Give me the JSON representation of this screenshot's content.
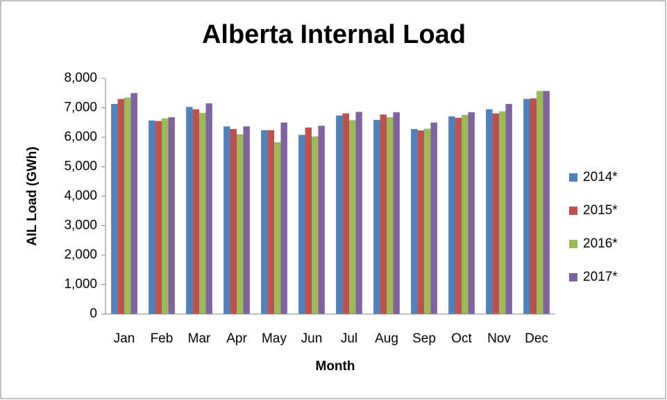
{
  "chart_data": {
    "type": "bar",
    "title": "Alberta Internal Load",
    "x_label": "Month",
    "y_label": "AIL Load (GWh)",
    "categories": [
      "Jan",
      "Feb",
      "Mar",
      "Apr",
      "May",
      "Jun",
      "Jul",
      "Aug",
      "Sep",
      "Oct",
      "Nov",
      "Dec"
    ],
    "series": [
      {
        "name": "2014*",
        "color": "#4f81bd",
        "values": [
          7130,
          6570,
          7030,
          6370,
          6240,
          6080,
          6740,
          6590,
          6280,
          6710,
          6950,
          7300
        ]
      },
      {
        "name": "2015*",
        "color": "#c0504d",
        "values": [
          7300,
          6550,
          6950,
          6280,
          6240,
          6330,
          6810,
          6770,
          6230,
          6660,
          6810,
          7320
        ]
      },
      {
        "name": "2016*",
        "color": "#9bbb59",
        "values": [
          7350,
          6640,
          6830,
          6100,
          5830,
          6030,
          6580,
          6680,
          6290,
          6760,
          6880,
          7570
        ]
      },
      {
        "name": "2017*",
        "color": "#8064a2",
        "values": [
          7500,
          6680,
          7150,
          6370,
          6500,
          6390,
          6860,
          6850,
          6500,
          6850,
          7130,
          7570
        ]
      }
    ],
    "ylim": [
      0,
      8000
    ],
    "yticks": [
      0,
      {
        "value": 1000,
        "label": "1,000"
      },
      {
        "value": 2000,
        "label": "2,000"
      },
      {
        "value": 3000,
        "label": "3,000"
      },
      {
        "value": 4000,
        "label": "4,000"
      },
      {
        "value": 5000,
        "label": "5,000"
      },
      {
        "value": 6000,
        "label": "6,000"
      },
      {
        "value": 7000,
        "label": "7,000"
      },
      {
        "value": 8000,
        "label": "8,000"
      }
    ],
    "legend": "right"
  }
}
